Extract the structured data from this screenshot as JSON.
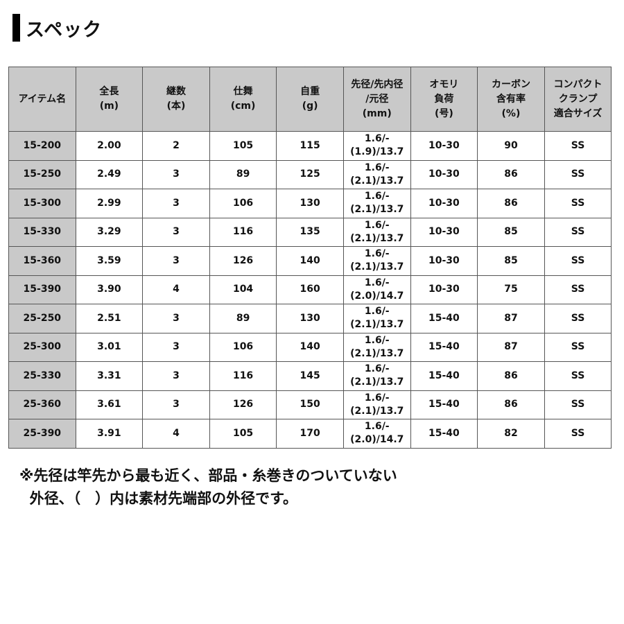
{
  "title": "スペック",
  "table": {
    "headers": [
      "アイテム名",
      "全長\n(m)",
      "継数\n(本)",
      "仕舞\n(cm)",
      "自重\n(g)",
      "先径/先内径\n/元径\n(mm)",
      "オモリ\n負荷\n(号)",
      "カーボン\n含有率\n(%)",
      "コンパクト\nクランプ\n適合サイズ"
    ],
    "rows": [
      [
        "15-200",
        "2.00",
        "2",
        "105",
        "115",
        "1.6/-\n(1.9)/13.7",
        "10-30",
        "90",
        "SS"
      ],
      [
        "15-250",
        "2.49",
        "3",
        "89",
        "125",
        "1.6/-\n(2.1)/13.7",
        "10-30",
        "86",
        "SS"
      ],
      [
        "15-300",
        "2.99",
        "3",
        "106",
        "130",
        "1.6/-\n(2.1)/13.7",
        "10-30",
        "86",
        "SS"
      ],
      [
        "15-330",
        "3.29",
        "3",
        "116",
        "135",
        "1.6/-\n(2.1)/13.7",
        "10-30",
        "85",
        "SS"
      ],
      [
        "15-360",
        "3.59",
        "3",
        "126",
        "140",
        "1.6/-\n(2.1)/13.7",
        "10-30",
        "85",
        "SS"
      ],
      [
        "15-390",
        "3.90",
        "4",
        "104",
        "160",
        "1.6/-\n(2.0)/14.7",
        "10-30",
        "75",
        "SS"
      ],
      [
        "25-250",
        "2.51",
        "3",
        "89",
        "130",
        "1.6/-\n(2.1)/13.7",
        "15-40",
        "87",
        "SS"
      ],
      [
        "25-300",
        "3.01",
        "3",
        "106",
        "140",
        "1.6/-\n(2.1)/13.7",
        "15-40",
        "87",
        "SS"
      ],
      [
        "25-330",
        "3.31",
        "3",
        "116",
        "145",
        "1.6/-\n(2.1)/13.7",
        "15-40",
        "86",
        "SS"
      ],
      [
        "25-360",
        "3.61",
        "3",
        "126",
        "150",
        "1.6/-\n(2.1)/13.7",
        "15-40",
        "86",
        "SS"
      ],
      [
        "25-390",
        "3.91",
        "4",
        "105",
        "170",
        "1.6/-\n(2.0)/14.7",
        "15-40",
        "82",
        "SS"
      ]
    ]
  },
  "note": {
    "line1": "※先径は竿先から最も近く、部品・糸巻きのついていない",
    "line2": "  外径、（　）内は素材先端部の外径です。"
  }
}
